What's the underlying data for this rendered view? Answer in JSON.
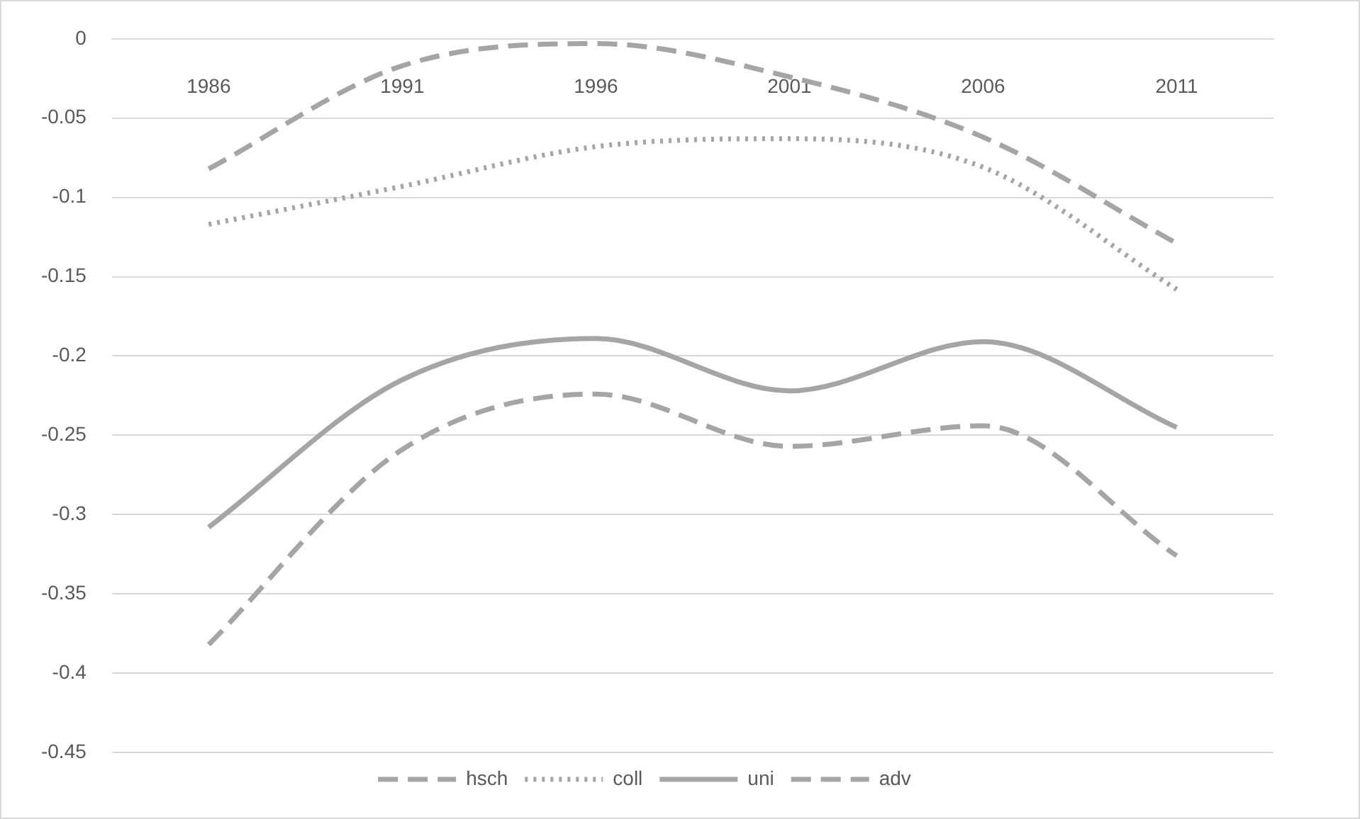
{
  "chart_data": {
    "type": "line",
    "categories": [
      "1986",
      "1991",
      "1996",
      "2001",
      "2006",
      "2011"
    ],
    "series": [
      {
        "name": "hsch",
        "color": "#a5a5a5",
        "line_style": "dashed",
        "values": [
          -0.082,
          -0.017,
          -0.003,
          -0.024,
          -0.062,
          -0.129
        ]
      },
      {
        "name": "coll",
        "color": "#a5a5a5",
        "line_style": "dotted",
        "values": [
          -0.117,
          -0.093,
          -0.068,
          -0.063,
          -0.081,
          -0.158
        ]
      },
      {
        "name": "uni",
        "color": "#a5a5a5",
        "line_style": "solid",
        "values": [
          -0.308,
          -0.215,
          -0.189,
          -0.222,
          -0.191,
          -0.245
        ]
      },
      {
        "name": "adv",
        "color": "#a5a5a5",
        "line_style": "dashed",
        "values": [
          -0.382,
          -0.259,
          -0.224,
          -0.257,
          -0.244,
          -0.326
        ]
      }
    ],
    "ylim": [
      -0.45,
      0
    ],
    "yticks": [
      -0.45,
      -0.4,
      -0.35,
      -0.3,
      -0.25,
      -0.2,
      -0.15,
      -0.1,
      -0.05,
      0
    ],
    "grid": "y",
    "legend": "bottom",
    "marker": "none"
  }
}
